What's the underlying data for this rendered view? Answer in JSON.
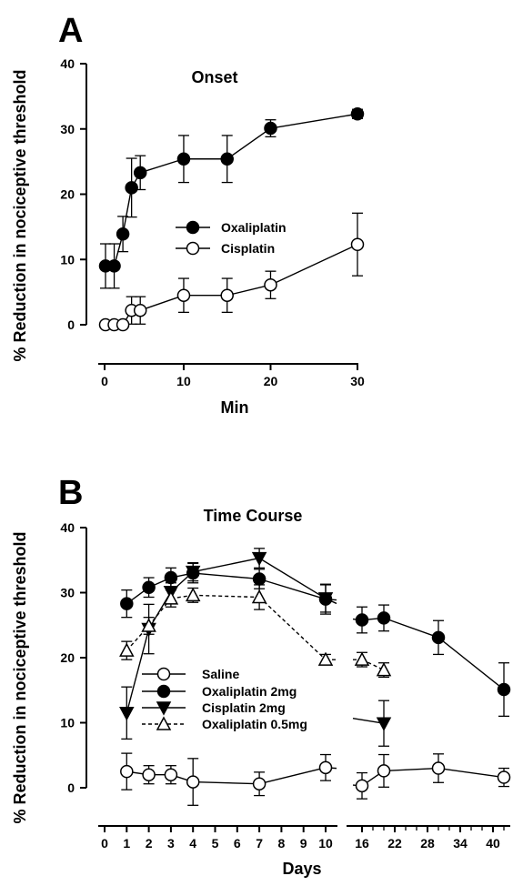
{
  "chart_data": [
    {
      "panel": "A",
      "type": "line",
      "title": "Onset",
      "xlabel": "Min",
      "ylabel": "% Reduction in nociceptive threshold",
      "xlim": [
        0,
        30
      ],
      "ylim": [
        0,
        40
      ],
      "x_ticks": [
        "0",
        "10",
        "20",
        "30"
      ],
      "y_ticks": [
        "0",
        "10",
        "20",
        "30",
        "40"
      ],
      "legend_position": "center-right",
      "series": [
        {
          "name": "Oxaliplatin",
          "marker": "filled-circle",
          "line": "solid",
          "x": [
            1,
            2,
            3,
            4,
            5,
            10,
            15,
            20,
            30
          ],
          "y": [
            9,
            9,
            13.9,
            21,
            23.3,
            25.4,
            25.4,
            30.1,
            32.3
          ],
          "err": [
            3.4,
            3.4,
            2.7,
            4.5,
            2.6,
            3.6,
            3.6,
            1.3,
            0.7
          ]
        },
        {
          "name": "Cisplatin",
          "marker": "open-circle",
          "line": "solid",
          "x": [
            1,
            2,
            3,
            4,
            5,
            10,
            15,
            20,
            30
          ],
          "y": [
            0,
            0,
            0,
            2.2,
            2.2,
            4.5,
            4.5,
            6.1,
            12.3
          ],
          "err": [
            0,
            0,
            0,
            2.1,
            2.1,
            2.6,
            2.6,
            2.1,
            4.8
          ]
        }
      ]
    },
    {
      "panel": "B",
      "type": "line",
      "title": "Time Course",
      "xlabel": "Days",
      "ylabel": "% Reduction in nociceptive threshold",
      "ylim": [
        0,
        40
      ],
      "axis_break": [
        10,
        16
      ],
      "x_ticks_left": [
        "0",
        "1",
        "2",
        "3",
        "4",
        "5",
        "6",
        "7",
        "8",
        "9",
        "10"
      ],
      "x_ticks_right": [
        "16",
        "22",
        "28",
        "34",
        "40"
      ],
      "y_ticks": [
        "0",
        "10",
        "20",
        "30",
        "40"
      ],
      "legend_position": "lower-left",
      "series": [
        {
          "name": "Saline",
          "marker": "open-circle",
          "line": "solid",
          "x": [
            1,
            2,
            3,
            4,
            7,
            10,
            16,
            20,
            30,
            42
          ],
          "y": [
            2.5,
            2,
            2,
            0.9,
            0.6,
            3.1,
            0.3,
            2.6,
            3,
            1.6
          ],
          "err": [
            2.8,
            1.4,
            1.4,
            3.6,
            1.8,
            2,
            2,
            2.5,
            2.2,
            1.4
          ]
        },
        {
          "name": "Oxaliplatin 2mg",
          "marker": "filled-circle",
          "line": "solid",
          "x": [
            1,
            2,
            3,
            4,
            7,
            10,
            16,
            20,
            30,
            42
          ],
          "y": [
            28.3,
            30.8,
            32.3,
            33,
            32.1,
            29,
            25.8,
            26.1,
            23.1,
            15.1
          ],
          "err": [
            2.1,
            1.5,
            1.5,
            1.5,
            1.5,
            2.3,
            2,
            2,
            2.6,
            4.1
          ]
        },
        {
          "name": "Cisplatin 2mg",
          "marker": "filled-triangle-down",
          "line": "solid",
          "x": [
            1,
            2,
            3,
            4,
            7,
            10,
            20
          ],
          "y": [
            11.5,
            24.4,
            30.1,
            33.2,
            35.3,
            29.1,
            9.9
          ],
          "err": [
            4,
            3.8,
            1.4,
            1.4,
            1.5,
            2.1,
            3.5
          ]
        },
        {
          "name": "Oxaliplatin 0.5mg",
          "marker": "open-triangle-up",
          "line": "dashed",
          "x": [
            1,
            2,
            3,
            4,
            7,
            10,
            16,
            20
          ],
          "y": [
            21.1,
            24.9,
            29.1,
            29.6,
            29.3,
            19.7,
            19.7,
            18.1
          ],
          "err": [
            1.4,
            1.3,
            1.3,
            1.1,
            1.9,
            0.8,
            1.1,
            1.1
          ]
        }
      ]
    }
  ]
}
